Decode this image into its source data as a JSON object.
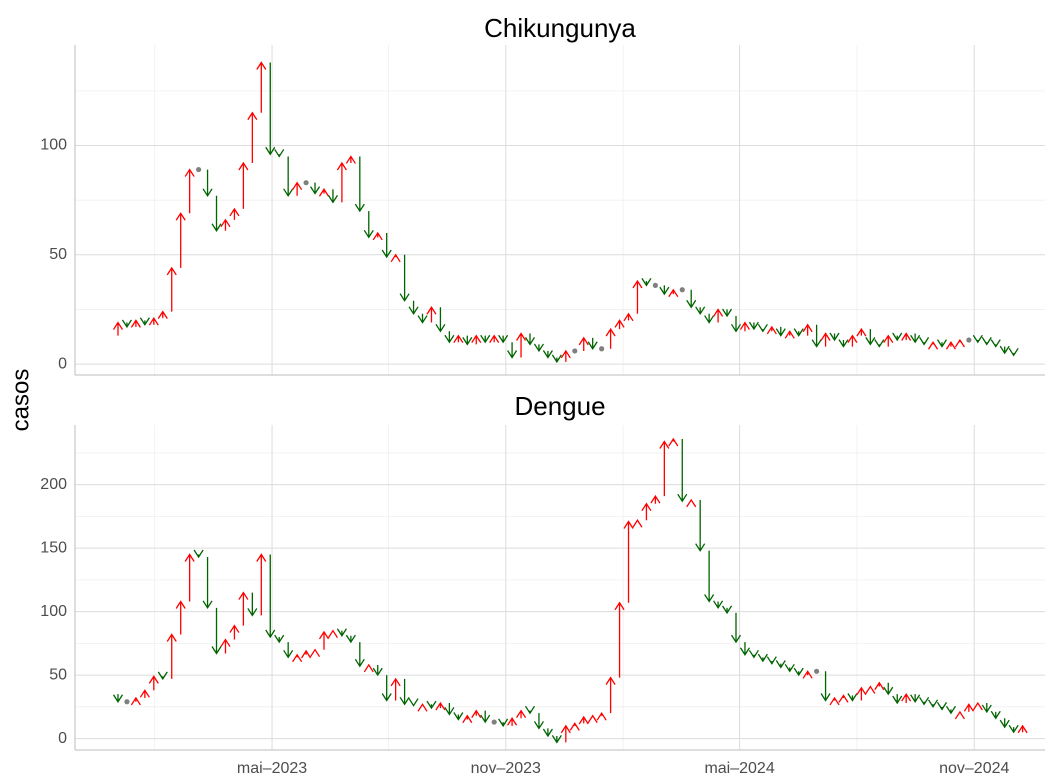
{
  "ylabel": "casos",
  "chart_data": [
    {
      "type": "arrow",
      "title": "Chikungunya",
      "x": [
        -1,
        0,
        1,
        2,
        3,
        4,
        5,
        6,
        7,
        8,
        9,
        10,
        11,
        12,
        13,
        14,
        15,
        16,
        17,
        18,
        19,
        20,
        21,
        22,
        23,
        24,
        25,
        26,
        27,
        28,
        29,
        30,
        31,
        32,
        33,
        34,
        35,
        36,
        37,
        38,
        39,
        40,
        41,
        42,
        43,
        44,
        45,
        46,
        47,
        48,
        49,
        50,
        51,
        52,
        53,
        54,
        55,
        56,
        57,
        58,
        59,
        60,
        61,
        62,
        63,
        64,
        65,
        66,
        67,
        68,
        69,
        70,
        71,
        72,
        73,
        74,
        75,
        76,
        77,
        78,
        79,
        80,
        81,
        82,
        83,
        84,
        85,
        86,
        87,
        88,
        89,
        90,
        91,
        92,
        93,
        94,
        95,
        96,
        97,
        98,
        99,
        100
      ],
      "values": [
        13,
        19,
        17,
        20,
        18,
        21,
        24,
        44,
        69,
        89,
        89,
        77,
        61,
        66,
        71,
        92,
        115,
        138,
        96,
        95,
        77,
        83,
        83,
        78,
        80,
        74,
        92,
        95,
        70,
        58,
        60,
        49,
        50,
        29,
        23,
        19,
        26,
        15,
        10,
        13,
        9,
        13,
        10,
        13,
        10,
        3,
        14,
        9,
        6,
        3,
        1,
        6,
        6,
        12,
        7,
        7,
        16,
        20,
        23,
        38,
        36,
        36,
        32,
        34,
        34,
        26,
        23,
        19,
        25,
        22,
        15,
        19,
        16,
        15,
        17,
        13,
        15,
        13,
        18,
        8,
        14,
        11,
        8,
        13,
        16,
        9,
        8,
        13,
        11,
        14,
        10,
        9,
        10,
        8,
        10,
        11,
        11,
        10,
        9,
        8,
        5,
        4
      ],
      "xlim": [
        -4.8,
        103.5
      ],
      "xticks": [
        17.2,
        43.3,
        69.4,
        95.6
      ],
      "xminor": [
        4.1,
        30.2,
        56.4,
        82.5
      ],
      "ylim": [
        -5,
        146
      ],
      "yticks": [
        0,
        50,
        100
      ],
      "yminor": [
        25,
        75,
        125
      ],
      "up_color": "#ff0000",
      "down_color": "#006400",
      "flat_color": "#808080"
    },
    {
      "type": "arrow",
      "title": "Dengue",
      "x": [
        -1,
        0,
        1,
        2,
        3,
        4,
        5,
        6,
        7,
        8,
        9,
        10,
        11,
        12,
        13,
        14,
        15,
        16,
        17,
        18,
        19,
        20,
        21,
        22,
        23,
        24,
        25,
        26,
        27,
        28,
        29,
        30,
        31,
        32,
        33,
        34,
        35,
        36,
        37,
        38,
        39,
        40,
        41,
        42,
        43,
        44,
        45,
        46,
        47,
        48,
        49,
        50,
        51,
        52,
        53,
        54,
        55,
        56,
        57,
        58,
        59,
        60,
        61,
        62,
        63,
        64,
        65,
        66,
        67,
        68,
        69,
        70,
        71,
        72,
        73,
        74,
        75,
        76,
        77,
        78,
        79,
        80,
        81,
        82,
        83,
        84,
        85,
        86,
        87,
        88,
        89,
        90,
        91,
        92,
        93,
        94,
        95,
        96,
        97,
        98,
        99,
        100,
        101
      ],
      "values": [
        35,
        29,
        29,
        32,
        38,
        49,
        47,
        82,
        108,
        145,
        143,
        103,
        67,
        78,
        89,
        115,
        97,
        145,
        80,
        76,
        64,
        66,
        69,
        70,
        84,
        85,
        81,
        76,
        57,
        58,
        50,
        30,
        47,
        27,
        26,
        27,
        24,
        28,
        19,
        15,
        18,
        22,
        13,
        13,
        10,
        16,
        22,
        20,
        8,
        2,
        -3,
        10,
        12,
        17,
        18,
        20,
        48,
        107,
        171,
        172,
        185,
        191,
        234,
        236,
        187,
        188,
        148,
        108,
        103,
        99,
        76,
        66,
        64,
        61,
        59,
        56,
        53,
        50,
        53,
        53,
        30,
        32,
        34,
        30,
        40,
        41,
        44,
        35,
        28,
        35,
        29,
        27,
        25,
        23,
        20,
        21,
        27,
        28,
        21,
        16,
        9,
        5,
        10
      ],
      "xlim": [
        -4.8,
        103.5
      ],
      "xticks": [
        {
          "value": 17.2,
          "label": "mai–2023"
        },
        {
          "value": 43.3,
          "label": "nov–2023"
        },
        {
          "value": 69.4,
          "label": "mai–2024"
        },
        {
          "value": 95.6,
          "label": "nov–2024"
        }
      ],
      "xminor": [
        4.1,
        30.2,
        56.4,
        82.5
      ],
      "ylim": [
        -9,
        247
      ],
      "yticks": [
        0,
        50,
        100,
        150,
        200
      ],
      "yminor": [
        25,
        75,
        125,
        175,
        225
      ],
      "up_color": "#ff0000",
      "down_color": "#006400",
      "flat_color": "#808080"
    }
  ]
}
